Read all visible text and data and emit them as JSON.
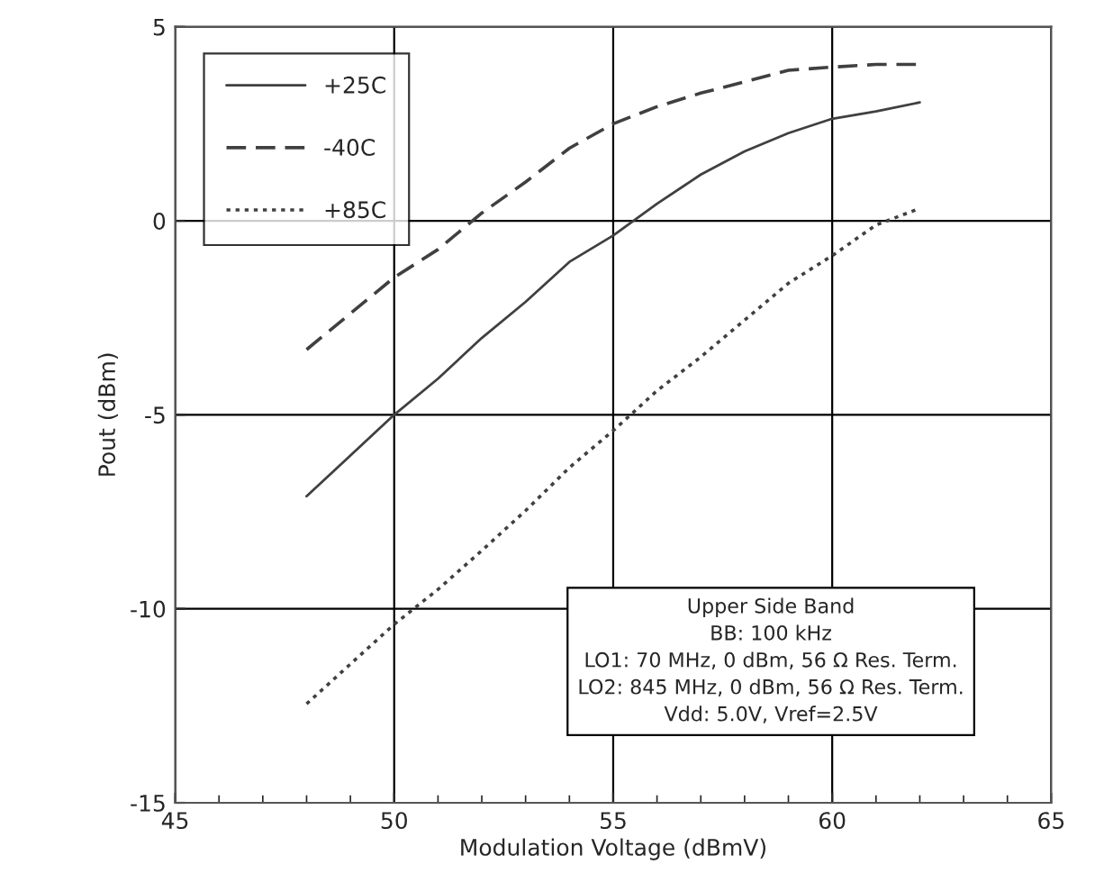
{
  "chart_data": {
    "type": "line",
    "xlabel": "Modulation Voltage (dBmV)",
    "ylabel": "Pout (dBm)",
    "x": [
      48,
      50,
      51,
      52,
      53,
      54,
      55,
      56,
      57,
      58,
      59,
      60,
      61,
      62
    ],
    "series": [
      {
        "name": "+25C",
        "color": "#404040",
        "line_style": "solid",
        "values": [
          -7.1,
          -5.0,
          -4.07,
          -3.02,
          -2.09,
          -1.06,
          -0.38,
          0.44,
          1.19,
          1.79,
          2.26,
          2.63,
          2.82,
          3.05
        ]
      },
      {
        "name": "-40C",
        "color": "#404040",
        "line_style": "dashed",
        "values": [
          -3.32,
          -1.46,
          -0.74,
          0.2,
          1.0,
          1.87,
          2.5,
          2.94,
          3.29,
          3.58,
          3.88,
          3.96,
          4.03,
          4.03
        ]
      },
      {
        "name": "+85C",
        "color": "#404040",
        "line_style": "dotted",
        "values": [
          -12.45,
          -10.4,
          -9.5,
          -8.5,
          -7.47,
          -6.36,
          -5.41,
          -4.38,
          -3.51,
          -2.56,
          -1.61,
          -0.9,
          -0.11,
          0.32
        ]
      }
    ],
    "xlim": [
      45,
      65
    ],
    "xticks": [
      45,
      50,
      55,
      60,
      65
    ],
    "ylim": [
      -15,
      5
    ],
    "yticks": [
      -15,
      -10,
      -5,
      0,
      5
    ],
    "grid": true,
    "legend": "top left",
    "marker": "none",
    "annotations": [
      "Upper Side Band\nBB: 100 kHz\nLO1: 70 MHz, 0 dBm, 56 Ω Res. Term.\nLO2: 845 MHz, 0 dBm, 56 Ω Res. Term.\nVdd: 5.0V, Vref=2.5V"
    ]
  }
}
